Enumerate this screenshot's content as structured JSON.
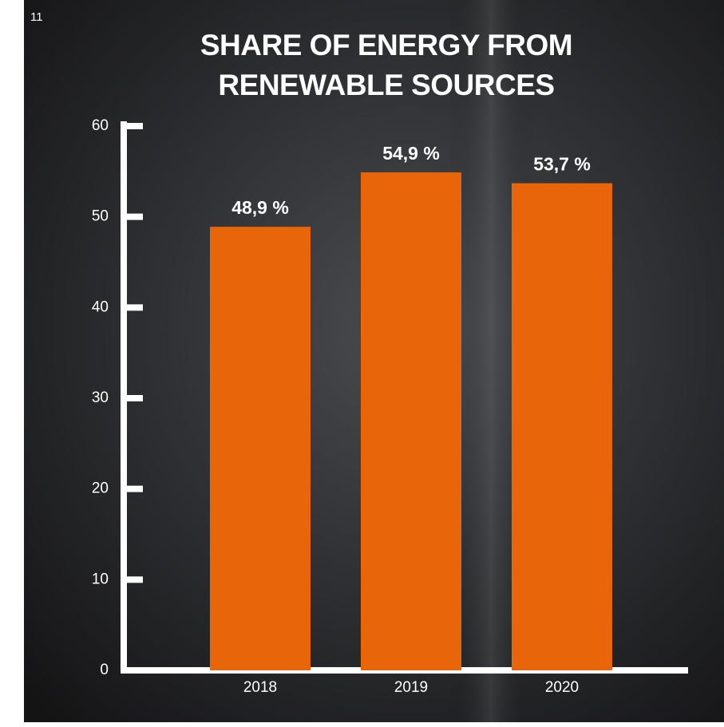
{
  "page_number": "11",
  "chart_data": {
    "type": "bar",
    "title": "SHARE OF ENERGY FROM RENEWABLE SOURCES",
    "categories": [
      "2018",
      "2019",
      "2020"
    ],
    "values": [
      48.9,
      54.9,
      53.7
    ],
    "value_labels": [
      "48,9 %",
      "54,9 %",
      "53,7 %"
    ],
    "color": "#e8650a",
    "ylim": [
      0,
      60
    ],
    "yticks": [
      0,
      10,
      20,
      30,
      40,
      50,
      60
    ]
  }
}
